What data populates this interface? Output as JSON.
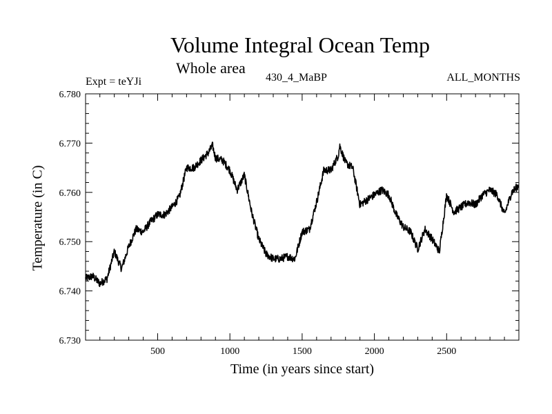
{
  "chart_data": {
    "type": "line",
    "title": "Volume Integral Ocean Temp",
    "subtitle": "Whole area",
    "left_label": "Expt = teYJi",
    "center_label": "430_4_MaBP",
    "right_label": "ALL_MONTHS",
    "xlabel": "Time (in years since start)",
    "ylabel": "Temperature (in C)",
    "xlim": [
      1,
      3000
    ],
    "ylim": [
      6.73,
      6.78
    ],
    "x_ticks": [
      500,
      1000,
      1500,
      2000,
      2500
    ],
    "y_ticks": [
      "6.730",
      "6.740",
      "6.750",
      "6.760",
      "6.770",
      "6.780"
    ],
    "grid": false,
    "series": [
      {
        "name": "Volume Integral Ocean Temp",
        "x": [
          1,
          50,
          100,
          150,
          200,
          250,
          300,
          350,
          400,
          450,
          500,
          550,
          600,
          650,
          700,
          750,
          800,
          850,
          880,
          900,
          950,
          1000,
          1050,
          1100,
          1150,
          1200,
          1250,
          1300,
          1350,
          1400,
          1450,
          1500,
          1550,
          1600,
          1650,
          1700,
          1750,
          1760,
          1800,
          1850,
          1900,
          1950,
          2000,
          2050,
          2100,
          2150,
          2200,
          2250,
          2300,
          2350,
          2400,
          2450,
          2500,
          2550,
          2600,
          2650,
          2700,
          2750,
          2800,
          2850,
          2900,
          2950,
          3000
        ],
        "values": [
          6.7425,
          6.743,
          6.7415,
          6.7425,
          6.748,
          6.7445,
          6.749,
          6.7525,
          6.752,
          6.754,
          6.7555,
          6.7555,
          6.757,
          6.759,
          6.765,
          6.765,
          6.7665,
          6.768,
          6.7695,
          6.767,
          6.7665,
          6.7645,
          6.7605,
          6.7635,
          6.756,
          6.7505,
          6.7475,
          6.7465,
          6.7465,
          6.747,
          6.7465,
          6.752,
          6.7525,
          6.758,
          6.7645,
          6.7645,
          6.7675,
          6.7695,
          6.766,
          6.765,
          6.7575,
          6.7585,
          6.7595,
          6.7605,
          6.7595,
          6.7555,
          6.753,
          6.752,
          6.7485,
          6.7525,
          6.7505,
          6.748,
          6.7595,
          6.756,
          6.757,
          6.758,
          6.7575,
          6.7595,
          6.7605,
          6.7595,
          6.7555,
          6.76,
          6.7615
        ]
      }
    ]
  }
}
